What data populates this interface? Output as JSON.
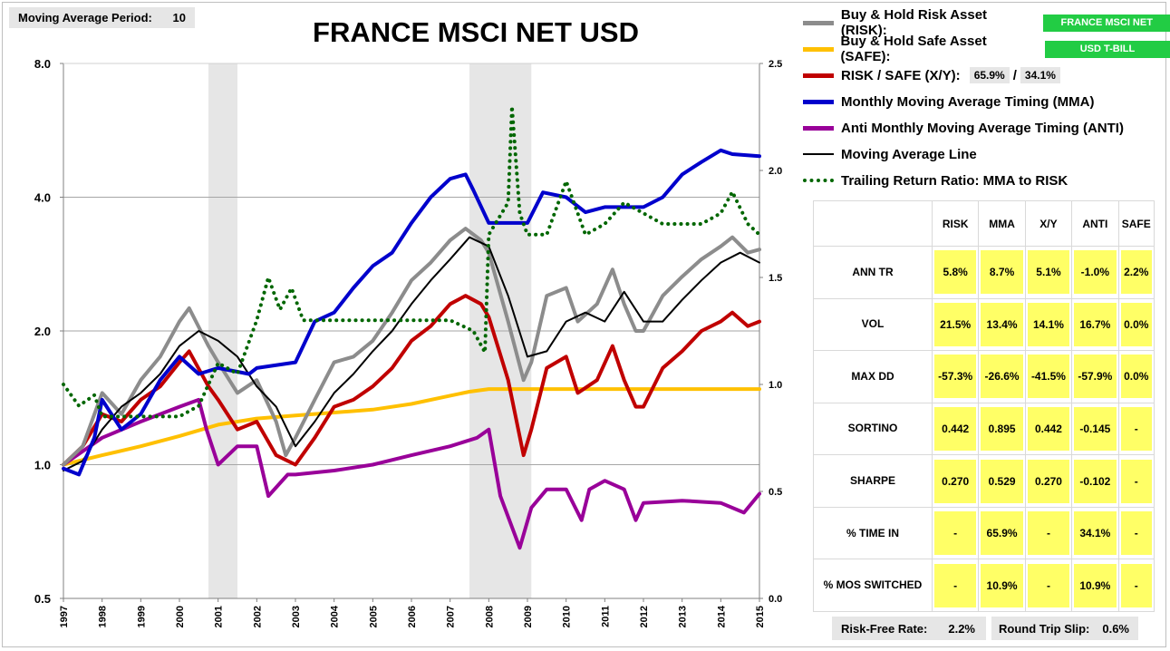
{
  "header": {
    "ma_label": "Moving Average Period:",
    "ma_value": "10"
  },
  "chart_data": {
    "type": "line",
    "title": "FRANCE MSCI NET USD",
    "y_left": {
      "scale": "log",
      "range": [
        0.5,
        8.0
      ],
      "ticks": [
        "0.5",
        "1.0",
        "2.0",
        "4.0",
        "8.0"
      ]
    },
    "y_right": {
      "range": [
        0.0,
        2.5
      ],
      "ticks": [
        "0.0",
        "0.5",
        "1.0",
        "1.5",
        "2.0",
        "2.5"
      ]
    },
    "x_range": [
      1997,
      2015
    ],
    "x_ticks": [
      "1997",
      "1998",
      "1999",
      "2000",
      "2001",
      "2002",
      "2003",
      "2004",
      "2005",
      "2006",
      "2007",
      "2008",
      "2009",
      "2010",
      "2011",
      "2012",
      "2013",
      "2014",
      "2015"
    ],
    "recession_bands": [
      [
        2000.75,
        2001.5
      ],
      [
        2007.5,
        2009.1
      ]
    ],
    "grid": "horizontal",
    "series": [
      {
        "name": "Buy & Hold Risk Asset (RISK)",
        "color": "#8c8c8c",
        "axis": "left",
        "points": [
          [
            1997,
            1.0
          ],
          [
            1997.5,
            1.1
          ],
          [
            1998,
            1.45
          ],
          [
            1998.5,
            1.3
          ],
          [
            1999,
            1.55
          ],
          [
            1999.5,
            1.75
          ],
          [
            2000,
            2.1
          ],
          [
            2000.25,
            2.25
          ],
          [
            2000.75,
            1.85
          ],
          [
            2001,
            1.7
          ],
          [
            2001.5,
            1.45
          ],
          [
            2002,
            1.55
          ],
          [
            2002.5,
            1.25
          ],
          [
            2002.75,
            1.05
          ],
          [
            2003,
            1.15
          ],
          [
            2003.5,
            1.4
          ],
          [
            2004,
            1.7
          ],
          [
            2004.5,
            1.75
          ],
          [
            2005,
            1.9
          ],
          [
            2005.5,
            2.2
          ],
          [
            2006,
            2.6
          ],
          [
            2006.5,
            2.85
          ],
          [
            2007,
            3.2
          ],
          [
            2007.4,
            3.4
          ],
          [
            2007.8,
            3.2
          ],
          [
            2008,
            3.0
          ],
          [
            2008.5,
            2.1
          ],
          [
            2008.9,
            1.55
          ],
          [
            2009.1,
            1.7
          ],
          [
            2009.5,
            2.4
          ],
          [
            2010,
            2.5
          ],
          [
            2010.3,
            2.1
          ],
          [
            2010.8,
            2.3
          ],
          [
            2011.2,
            2.75
          ],
          [
            2011.5,
            2.3
          ],
          [
            2011.8,
            2.0
          ],
          [
            2012,
            2.0
          ],
          [
            2012.5,
            2.4
          ],
          [
            2013,
            2.65
          ],
          [
            2013.5,
            2.9
          ],
          [
            2014,
            3.1
          ],
          [
            2014.3,
            3.25
          ],
          [
            2014.7,
            3.0
          ],
          [
            2015,
            3.05
          ]
        ]
      },
      {
        "name": "Buy & Hold Safe Asset (SAFE)",
        "color": "#ffc000",
        "axis": "left",
        "points": [
          [
            1997,
            1.0
          ],
          [
            1998,
            1.05
          ],
          [
            1999,
            1.1
          ],
          [
            2000,
            1.16
          ],
          [
            2001,
            1.23
          ],
          [
            2002,
            1.27
          ],
          [
            2003,
            1.29
          ],
          [
            2004,
            1.31
          ],
          [
            2005,
            1.33
          ],
          [
            2006,
            1.37
          ],
          [
            2007,
            1.43
          ],
          [
            2007.5,
            1.46
          ],
          [
            2008,
            1.48
          ],
          [
            2009,
            1.48
          ],
          [
            2012,
            1.48
          ],
          [
            2015,
            1.48
          ]
        ]
      },
      {
        "name": "RISK / SAFE (X/Y)",
        "color": "#c00000",
        "axis": "left",
        "points": [
          [
            1997,
            1.0
          ],
          [
            1997.5,
            1.1
          ],
          [
            1998,
            1.3
          ],
          [
            1998.5,
            1.25
          ],
          [
            1999,
            1.4
          ],
          [
            1999.5,
            1.5
          ],
          [
            2000,
            1.7
          ],
          [
            2000.25,
            1.8
          ],
          [
            2000.75,
            1.5
          ],
          [
            2001,
            1.4
          ],
          [
            2001.5,
            1.2
          ],
          [
            2002,
            1.25
          ],
          [
            2002.5,
            1.05
          ],
          [
            2003,
            1.0
          ],
          [
            2003.5,
            1.15
          ],
          [
            2004,
            1.35
          ],
          [
            2004.5,
            1.4
          ],
          [
            2005,
            1.5
          ],
          [
            2005.5,
            1.65
          ],
          [
            2006,
            1.9
          ],
          [
            2006.5,
            2.05
          ],
          [
            2007,
            2.3
          ],
          [
            2007.4,
            2.4
          ],
          [
            2007.8,
            2.3
          ],
          [
            2008,
            2.15
          ],
          [
            2008.5,
            1.55
          ],
          [
            2008.9,
            1.05
          ],
          [
            2009.1,
            1.2
          ],
          [
            2009.5,
            1.65
          ],
          [
            2010,
            1.75
          ],
          [
            2010.3,
            1.45
          ],
          [
            2010.8,
            1.55
          ],
          [
            2011.2,
            1.85
          ],
          [
            2011.5,
            1.55
          ],
          [
            2011.8,
            1.35
          ],
          [
            2012,
            1.35
          ],
          [
            2012.5,
            1.65
          ],
          [
            2013,
            1.8
          ],
          [
            2013.5,
            2.0
          ],
          [
            2014,
            2.1
          ],
          [
            2014.3,
            2.2
          ],
          [
            2014.7,
            2.05
          ],
          [
            2015,
            2.1
          ]
        ]
      },
      {
        "name": "Monthly Moving Average Timing (MMA)",
        "color": "#0000cc",
        "axis": "left",
        "points": [
          [
            1997,
            0.98
          ],
          [
            1997.4,
            0.95
          ],
          [
            1997.8,
            1.15
          ],
          [
            1998,
            1.4
          ],
          [
            1998.5,
            1.2
          ],
          [
            1999,
            1.3
          ],
          [
            1999.5,
            1.55
          ],
          [
            2000,
            1.75
          ],
          [
            2000.5,
            1.6
          ],
          [
            2001,
            1.65
          ],
          [
            2001.8,
            1.6
          ],
          [
            2002,
            1.65
          ],
          [
            2003,
            1.7
          ],
          [
            2003.5,
            2.1
          ],
          [
            2004,
            2.2
          ],
          [
            2004.5,
            2.5
          ],
          [
            2005,
            2.8
          ],
          [
            2005.5,
            3.0
          ],
          [
            2006,
            3.5
          ],
          [
            2006.5,
            4.0
          ],
          [
            2007,
            4.4
          ],
          [
            2007.4,
            4.5
          ],
          [
            2007.6,
            4.15
          ],
          [
            2008,
            3.5
          ],
          [
            2009,
            3.5
          ],
          [
            2009.4,
            4.1
          ],
          [
            2010,
            4.0
          ],
          [
            2010.5,
            3.7
          ],
          [
            2011,
            3.8
          ],
          [
            2012,
            3.8
          ],
          [
            2012.5,
            4.0
          ],
          [
            2013,
            4.5
          ],
          [
            2013.5,
            4.8
          ],
          [
            2014,
            5.1
          ],
          [
            2014.3,
            5.0
          ],
          [
            2015,
            4.95
          ]
        ]
      },
      {
        "name": "Anti Monthly Moving Average Timing (ANTI)",
        "color": "#990099",
        "axis": "left",
        "points": [
          [
            1997,
            1.0
          ],
          [
            1998,
            1.15
          ],
          [
            1999,
            1.25
          ],
          [
            2000,
            1.35
          ],
          [
            2000.5,
            1.4
          ],
          [
            2000.7,
            1.2
          ],
          [
            2001,
            1.0
          ],
          [
            2001.5,
            1.1
          ],
          [
            2002,
            1.1
          ],
          [
            2002.3,
            0.85
          ],
          [
            2002.8,
            0.95
          ],
          [
            2003,
            0.95
          ],
          [
            2004,
            0.97
          ],
          [
            2005,
            1.0
          ],
          [
            2006,
            1.05
          ],
          [
            2007,
            1.1
          ],
          [
            2007.7,
            1.15
          ],
          [
            2008,
            1.2
          ],
          [
            2008.3,
            0.85
          ],
          [
            2008.8,
            0.65
          ],
          [
            2009.1,
            0.8
          ],
          [
            2009.5,
            0.88
          ],
          [
            2010,
            0.88
          ],
          [
            2010.4,
            0.75
          ],
          [
            2010.6,
            0.88
          ],
          [
            2011,
            0.92
          ],
          [
            2011.5,
            0.88
          ],
          [
            2011.8,
            0.75
          ],
          [
            2012,
            0.82
          ],
          [
            2013,
            0.83
          ],
          [
            2014,
            0.82
          ],
          [
            2014.6,
            0.78
          ],
          [
            2015,
            0.86
          ]
        ]
      },
      {
        "name": "Moving Average Line",
        "color": "#000000",
        "axis": "left",
        "points": [
          [
            1997,
            0.97
          ],
          [
            1997.5,
            1.02
          ],
          [
            1998,
            1.2
          ],
          [
            1998.5,
            1.35
          ],
          [
            1999,
            1.45
          ],
          [
            1999.5,
            1.6
          ],
          [
            2000,
            1.85
          ],
          [
            2000.5,
            2.0
          ],
          [
            2001,
            1.9
          ],
          [
            2001.5,
            1.75
          ],
          [
            2002,
            1.5
          ],
          [
            2002.5,
            1.35
          ],
          [
            2003,
            1.1
          ],
          [
            2003.5,
            1.25
          ],
          [
            2004,
            1.45
          ],
          [
            2004.5,
            1.6
          ],
          [
            2005,
            1.8
          ],
          [
            2005.5,
            2.0
          ],
          [
            2006,
            2.3
          ],
          [
            2006.5,
            2.6
          ],
          [
            2007,
            2.9
          ],
          [
            2007.5,
            3.25
          ],
          [
            2008,
            3.1
          ],
          [
            2008.5,
            2.4
          ],
          [
            2009,
            1.75
          ],
          [
            2009.5,
            1.8
          ],
          [
            2010,
            2.1
          ],
          [
            2010.5,
            2.2
          ],
          [
            2011,
            2.1
          ],
          [
            2011.5,
            2.45
          ],
          [
            2012,
            2.1
          ],
          [
            2012.5,
            2.1
          ],
          [
            2013,
            2.35
          ],
          [
            2013.5,
            2.6
          ],
          [
            2014,
            2.85
          ],
          [
            2014.5,
            3.0
          ],
          [
            2015,
            2.85
          ]
        ]
      },
      {
        "name": "Trailing Return Ratio: MMA to RISK",
        "color": "#006600",
        "axis": "right",
        "style": "dotted",
        "points": [
          [
            1997,
            1.0
          ],
          [
            1997.4,
            0.9
          ],
          [
            1997.8,
            0.95
          ],
          [
            1998,
            0.85
          ],
          [
            1999,
            0.85
          ],
          [
            2000,
            0.85
          ],
          [
            2000.5,
            0.9
          ],
          [
            2001,
            1.1
          ],
          [
            2001.5,
            1.05
          ],
          [
            2002,
            1.3
          ],
          [
            2002.3,
            1.5
          ],
          [
            2002.6,
            1.35
          ],
          [
            2002.9,
            1.45
          ],
          [
            2003.2,
            1.3
          ],
          [
            2004,
            1.3
          ],
          [
            2005,
            1.3
          ],
          [
            2006,
            1.3
          ],
          [
            2007,
            1.3
          ],
          [
            2007.6,
            1.25
          ],
          [
            2007.9,
            1.15
          ],
          [
            2008,
            1.7
          ],
          [
            2008.5,
            1.85
          ],
          [
            2008.6,
            2.3
          ],
          [
            2008.8,
            1.8
          ],
          [
            2009,
            1.7
          ],
          [
            2009.5,
            1.7
          ],
          [
            2010,
            1.95
          ],
          [
            2010.5,
            1.7
          ],
          [
            2011,
            1.75
          ],
          [
            2011.5,
            1.85
          ],
          [
            2012,
            1.8
          ],
          [
            2012.5,
            1.75
          ],
          [
            2013,
            1.75
          ],
          [
            2013.5,
            1.75
          ],
          [
            2014,
            1.8
          ],
          [
            2014.3,
            1.9
          ],
          [
            2014.7,
            1.75
          ],
          [
            2015,
            1.7
          ]
        ]
      }
    ]
  },
  "legend": {
    "risk_label": "Buy & Hold Risk Asset (RISK):",
    "risk_asset": "FRANCE MSCI NET",
    "safe_label": "Buy & Hold Safe Asset (SAFE):",
    "safe_asset": "USD T-BILL",
    "xy_label": "RISK / SAFE (X/Y):",
    "xy_risk": "65.9%",
    "xy_sep": "/",
    "xy_safe": "34.1%",
    "mma_label": "Monthly Moving Average Timing (MMA)",
    "anti_label": "Anti Monthly Moving Average Timing (ANTI)",
    "ma_line_label": "Moving Average Line",
    "ratio_label": "Trailing Return Ratio: MMA to RISK"
  },
  "stats": {
    "columns": [
      "",
      "RISK",
      "MMA",
      "X/Y",
      "ANTI",
      "SAFE"
    ],
    "rows": [
      {
        "label": "ANN TR",
        "values": [
          "5.8%",
          "8.7%",
          "5.1%",
          "-1.0%",
          "2.2%"
        ]
      },
      {
        "label": "VOL",
        "values": [
          "21.5%",
          "13.4%",
          "14.1%",
          "16.7%",
          "0.0%"
        ]
      },
      {
        "label": "MAX DD",
        "values": [
          "-57.3%",
          "-26.6%",
          "-41.5%",
          "-57.9%",
          "0.0%"
        ]
      },
      {
        "label": "SORTINO",
        "values": [
          "0.442",
          "0.895",
          "0.442",
          "-0.145",
          "-"
        ]
      },
      {
        "label": "SHARPE",
        "values": [
          "0.270",
          "0.529",
          "0.270",
          "-0.102",
          "-"
        ]
      },
      {
        "label": "% TIME IN",
        "values": [
          "-",
          "65.9%",
          "-",
          "34.1%",
          "-"
        ]
      },
      {
        "label": "% MOS SWITCHED",
        "values": [
          "-",
          "10.9%",
          "-",
          "10.9%",
          "-"
        ]
      }
    ]
  },
  "footer": {
    "rf_label": "Risk-Free Rate:",
    "rf_value": "2.2%",
    "slip_label": "Round Trip Slip:",
    "slip_value": "0.6%"
  }
}
